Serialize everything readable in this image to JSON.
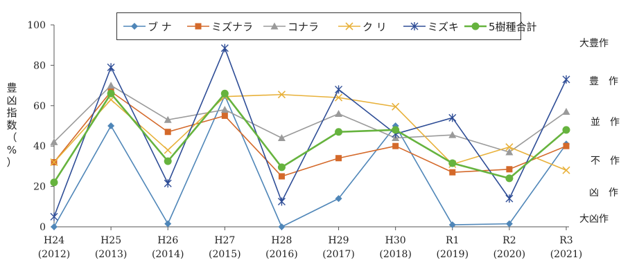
{
  "chart_data": {
    "type": "line",
    "ylabel_chars": [
      "豊",
      "凶",
      "指",
      "数",
      "（",
      "%",
      "）"
    ],
    "ylim": [
      0,
      100
    ],
    "yticks": [
      0,
      20,
      40,
      60,
      80,
      100
    ],
    "categories": [
      {
        "era": "H24",
        "year": "(2012)"
      },
      {
        "era": "H25",
        "year": "(2013)"
      },
      {
        "era": "H26",
        "year": "(2014)"
      },
      {
        "era": "H27",
        "year": "(2015)"
      },
      {
        "era": "H28",
        "year": "(2016)"
      },
      {
        "era": "H29",
        "year": "(2017)"
      },
      {
        "era": "H30",
        "year": "(2018)"
      },
      {
        "era": "R1",
        "year": "(2019)"
      },
      {
        "era": "R2",
        "year": "(2020)"
      },
      {
        "era": "R3",
        "year": "(2021)"
      }
    ],
    "grid": false,
    "legend_position": "top",
    "series": [
      {
        "name": "ブ ナ",
        "color": "#4f86b8",
        "marker": "diamond",
        "values": [
          0,
          50,
          1.5,
          65,
          0,
          14,
          50,
          1,
          1.5,
          41
        ]
      },
      {
        "name": "ミズナラ",
        "color": "#d4692a",
        "marker": "square",
        "values": [
          32,
          67,
          47,
          55,
          25,
          34,
          40,
          27,
          28.5,
          40
        ]
      },
      {
        "name": "コナラ",
        "color": "#9a9a9a",
        "marker": "triangle",
        "values": [
          42,
          70,
          53,
          58,
          44,
          56,
          44,
          45.5,
          37,
          57
        ]
      },
      {
        "name": "ク リ",
        "color": "#e8b13a",
        "marker": "x",
        "values": [
          32,
          63,
          38,
          64.5,
          65.5,
          64,
          59.5,
          31,
          39.5,
          28
        ]
      },
      {
        "name": "ミズキ",
        "color": "#2e4d96",
        "marker": "star",
        "values": [
          5,
          79,
          21.5,
          88.5,
          12.5,
          68,
          46,
          54,
          14,
          73
        ]
      },
      {
        "name": "5樹種合計",
        "color": "#66b33e",
        "marker": "circle",
        "values": [
          22,
          66,
          32.5,
          66,
          29.5,
          47,
          48,
          31.5,
          24,
          48
        ]
      }
    ],
    "bands": [
      "大豊作",
      "豊　作",
      "並　作",
      "不　作",
      "凶　作",
      "大凶作"
    ]
  }
}
